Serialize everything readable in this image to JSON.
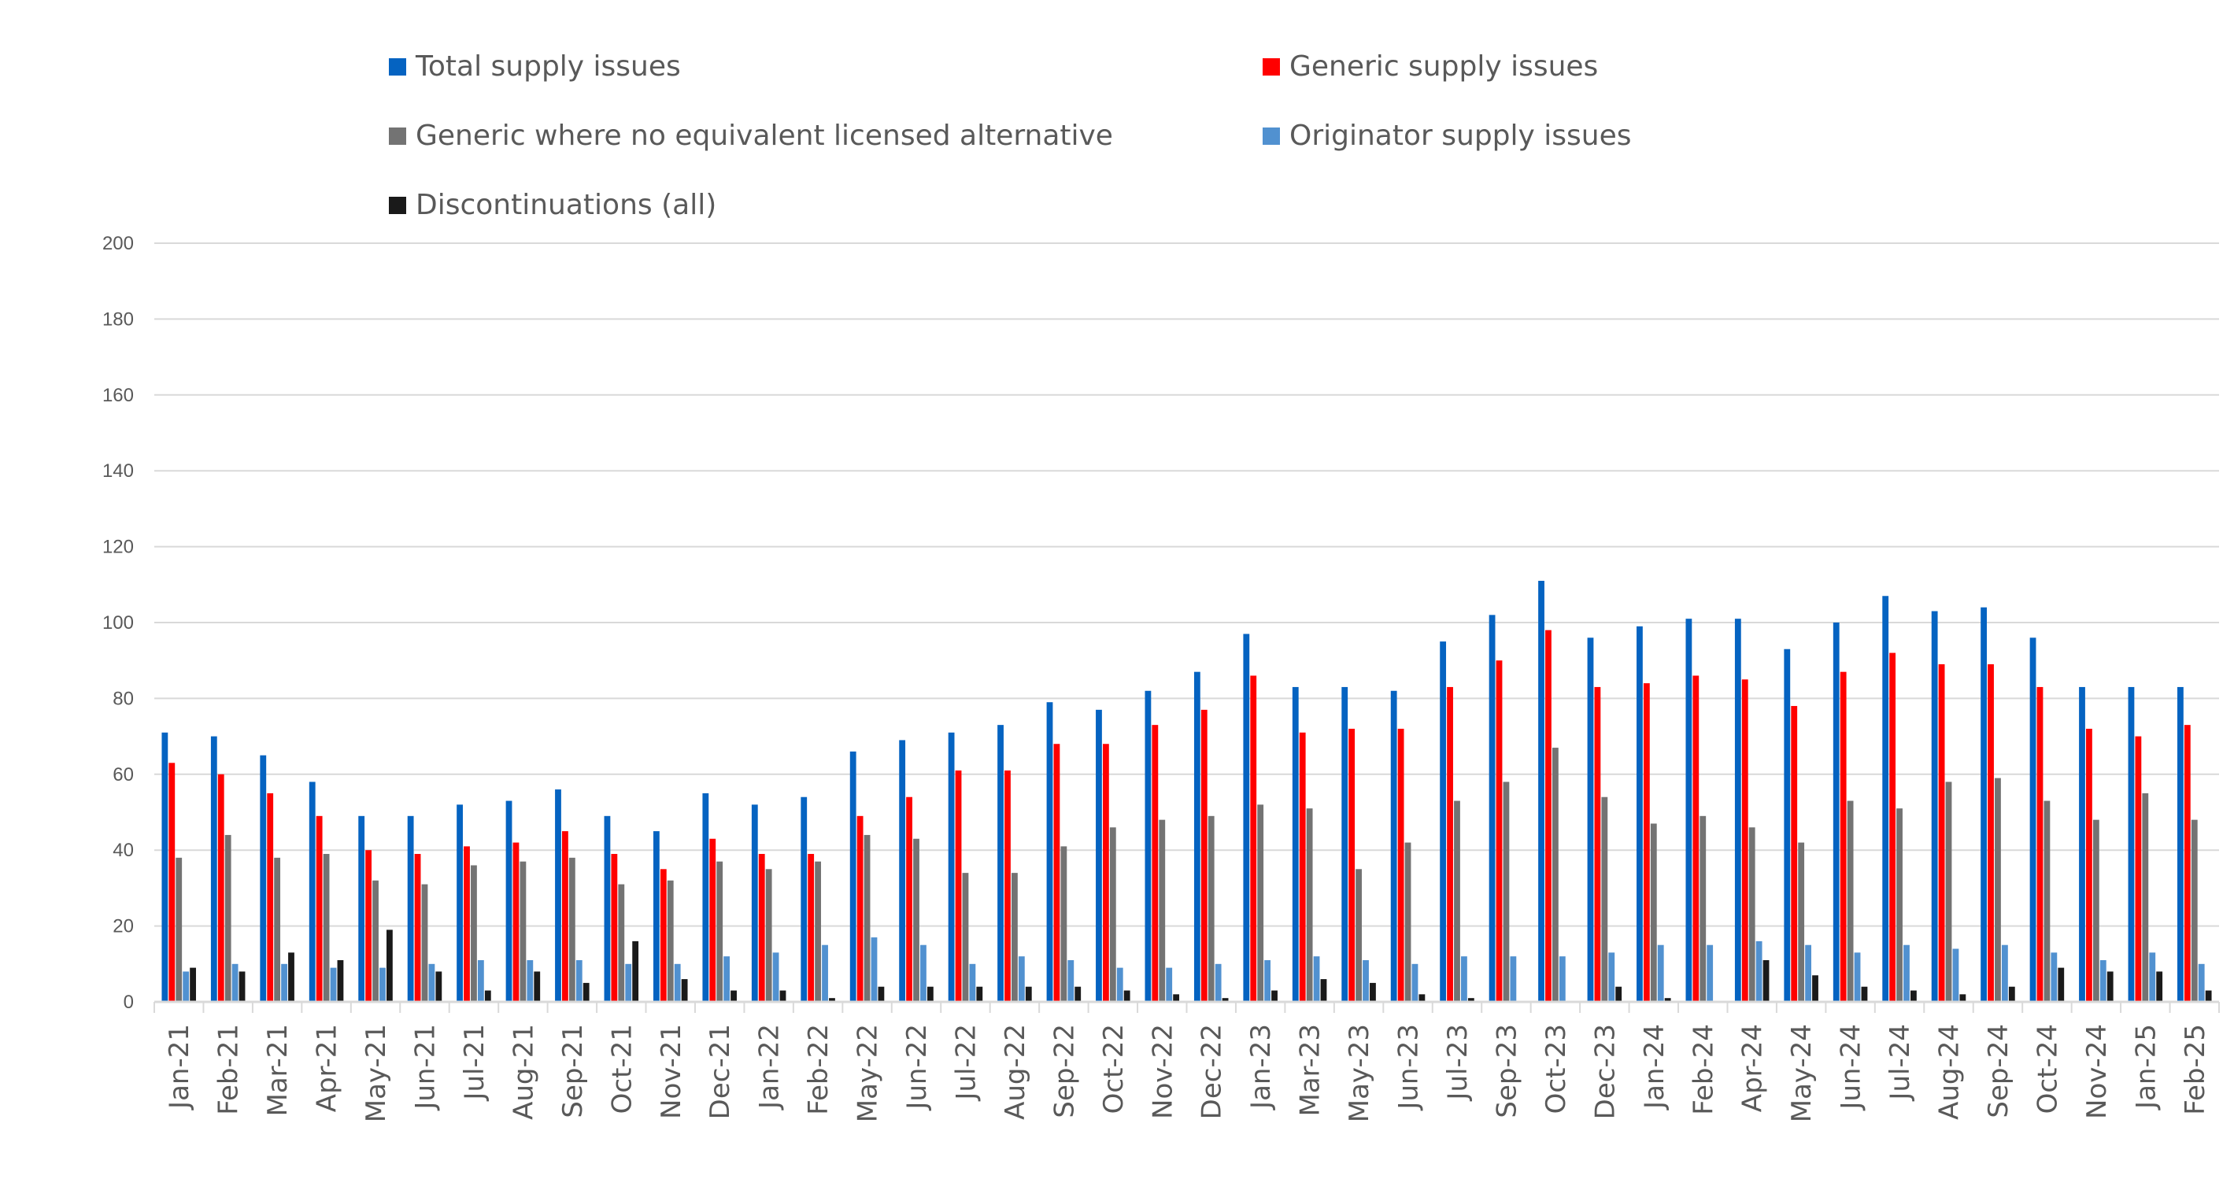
{
  "chart_data": {
    "type": "bar",
    "title": "",
    "xlabel": "",
    "ylabel": "",
    "ylim": [
      0,
      200
    ],
    "yticks": [
      0,
      20,
      40,
      60,
      80,
      100,
      120,
      140,
      160,
      180,
      200
    ],
    "grid": true,
    "legend_position": "top",
    "categories": [
      "Jan-21",
      "Feb-21",
      "Mar-21",
      "Apr-21",
      "May-21",
      "Jun-21",
      "Jul-21",
      "Aug-21",
      "Sep-21",
      "Oct-21",
      "Nov-21",
      "Dec-21",
      "Jan-22",
      "Feb-22",
      "May-22",
      "Jun-22",
      "Jul-22",
      "Aug-22",
      "Sep-22",
      "Oct-22",
      "Nov-22",
      "Dec-22",
      "Jan-23",
      "Mar-23",
      "May-23",
      "Jun-23",
      "Jul-23",
      "Sep-23",
      "Oct-23",
      "Dec-23",
      "Jan-24",
      "Feb-24",
      "Apr-24",
      "May-24",
      "Jun-24",
      "Jul-24",
      "Aug-24",
      "Sep-24",
      "Oct-24",
      "Nov-24",
      "Jan-25",
      "Feb-25"
    ],
    "series": [
      {
        "name": "Total supply issues",
        "color": "#0563C1",
        "values": [
          71,
          70,
          65,
          58,
          49,
          49,
          52,
          53,
          56,
          49,
          45,
          55,
          52,
          54,
          66,
          69,
          71,
          73,
          79,
          77,
          82,
          87,
          97,
          83,
          83,
          82,
          95,
          102,
          111,
          96,
          99,
          101,
          101,
          93,
          100,
          107,
          103,
          104,
          96,
          83,
          83,
          83
        ]
      },
      {
        "name": "Generic supply issues",
        "color": "#FF0000",
        "values": [
          63,
          60,
          55,
          49,
          40,
          39,
          41,
          42,
          45,
          39,
          35,
          43,
          39,
          39,
          49,
          54,
          61,
          61,
          68,
          68,
          73,
          77,
          86,
          71,
          72,
          72,
          83,
          90,
          98,
          83,
          84,
          86,
          85,
          78,
          87,
          92,
          89,
          89,
          83,
          72,
          70,
          73
        ]
      },
      {
        "name": "Generic where no equivalent licensed alternative",
        "color": "#737373",
        "values": [
          38,
          44,
          38,
          39,
          32,
          31,
          36,
          37,
          38,
          31,
          32,
          37,
          35,
          37,
          44,
          43,
          34,
          34,
          41,
          46,
          48,
          49,
          52,
          51,
          35,
          42,
          53,
          58,
          67,
          54,
          47,
          49,
          46,
          42,
          53,
          51,
          58,
          59,
          53,
          48,
          55,
          48
        ]
      },
      {
        "name": "Originator supply issues",
        "color": "#5191D0",
        "values": [
          8,
          10,
          10,
          9,
          9,
          10,
          11,
          11,
          11,
          10,
          10,
          12,
          13,
          15,
          17,
          15,
          10,
          12,
          11,
          9,
          9,
          10,
          11,
          12,
          11,
          10,
          12,
          12,
          12,
          13,
          15,
          15,
          16,
          15,
          13,
          15,
          14,
          15,
          13,
          11,
          13,
          10
        ]
      },
      {
        "name": "Discontinuations (all)",
        "color": "#1A1A1A",
        "values": [
          9,
          8,
          13,
          11,
          19,
          8,
          3,
          8,
          5,
          16,
          6,
          3,
          3,
          1,
          4,
          4,
          4,
          4,
          4,
          3,
          2,
          1,
          3,
          6,
          5,
          2,
          1,
          0,
          0,
          4,
          1,
          0,
          11,
          7,
          4,
          3,
          2,
          4,
          9,
          8,
          8,
          3
        ]
      }
    ]
  }
}
